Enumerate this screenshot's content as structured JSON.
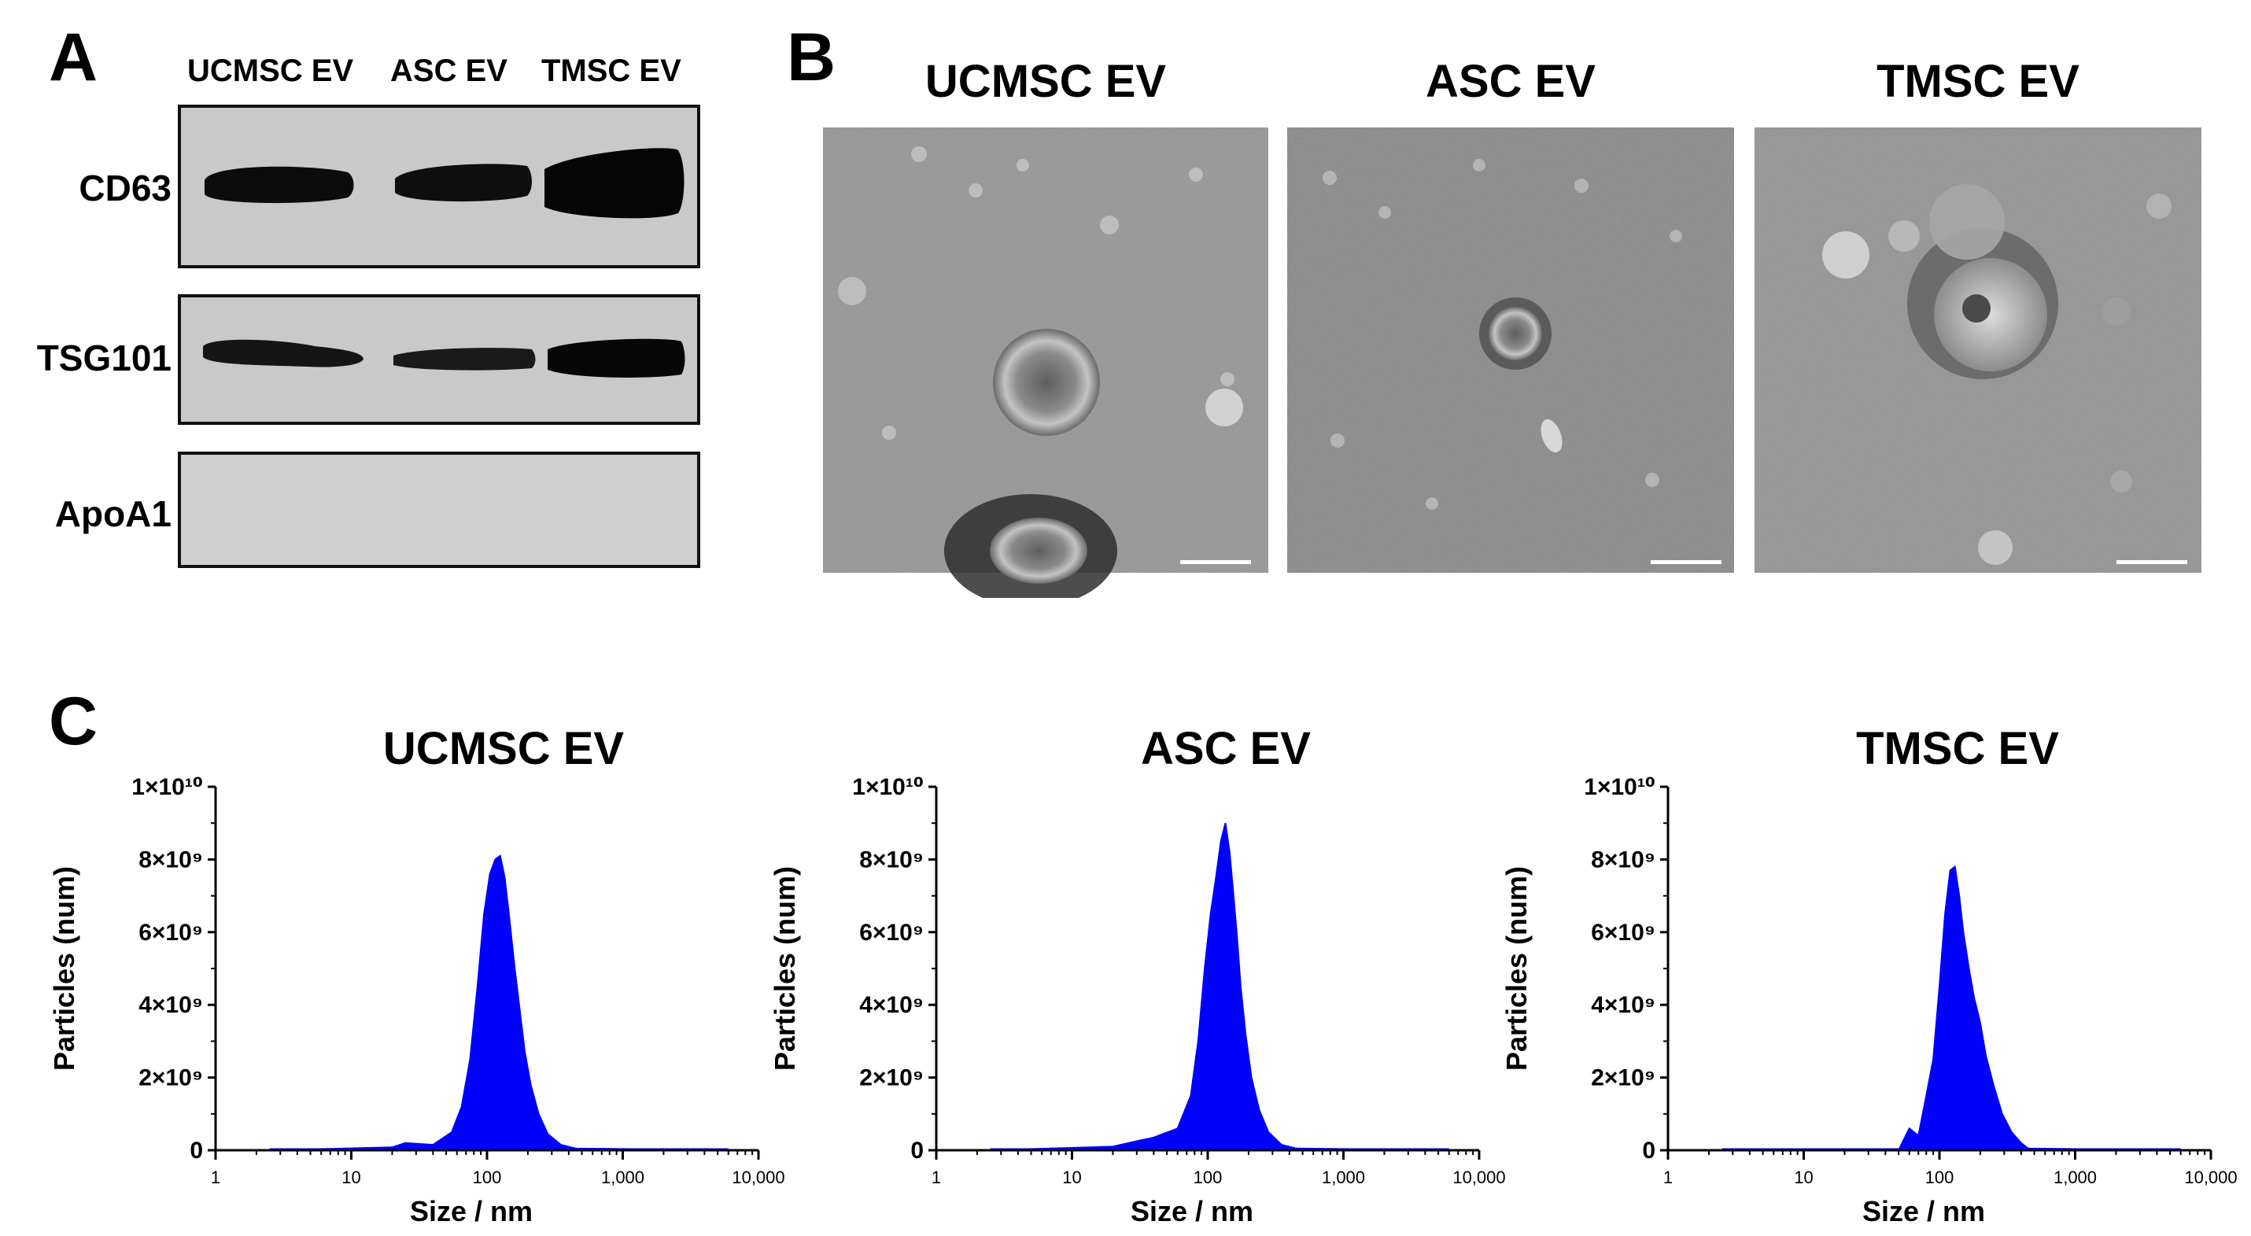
{
  "panelA": {
    "letter": "A",
    "lanes": [
      "UCMSC EV",
      "ASC EV",
      "TMSC EV"
    ],
    "rows": [
      "CD63",
      "TSG101",
      "ApoA1"
    ]
  },
  "panelB": {
    "letter": "B",
    "titles": [
      "UCMSC EV",
      "ASC EV",
      "TMSC EV"
    ]
  },
  "panelC": {
    "letter": "C",
    "titles": [
      "UCMSC EV",
      "ASC EV",
      "TMSC EV"
    ],
    "xlabel": "Size / nm",
    "ylabel": "Particles (num)"
  },
  "chart_data": [
    {
      "type": "area",
      "title": "UCMSC EV",
      "xlabel": "Size / nm",
      "ylabel": "Particles (num)",
      "xscale": "log",
      "xlim": [
        1,
        10000
      ],
      "ylim": [
        0,
        10000000000
      ],
      "xticks": [
        "1",
        "10",
        "100",
        "1,000",
        "10,000"
      ],
      "yticks": [
        "0",
        "2×10⁹",
        "4×10⁹",
        "6×10⁹",
        "8×10⁹",
        "1×10¹⁰"
      ],
      "color": "#0000ff",
      "x": [
        2.5,
        20,
        25,
        40,
        55,
        65,
        75,
        85,
        95,
        105,
        115,
        125,
        135,
        145,
        160,
        175,
        190,
        210,
        240,
        280,
        350,
        450,
        6000
      ],
      "y": [
        0,
        80000000,
        200000000,
        150000000,
        500000000,
        1200000000,
        2500000000,
        4500000000,
        6500000000,
        7600000000,
        8000000000,
        8100000000,
        7500000000,
        6500000000,
        5000000000,
        3800000000,
        2700000000,
        1800000000,
        1000000000,
        450000000,
        150000000,
        50000000,
        0
      ]
    },
    {
      "type": "area",
      "title": "ASC EV",
      "xlabel": "Size / nm",
      "ylabel": "Particles (num)",
      "xscale": "log",
      "xlim": [
        1,
        10000
      ],
      "ylim": [
        0,
        10000000000
      ],
      "xticks": [
        "1",
        "10",
        "100",
        "1,000",
        "10,000"
      ],
      "yticks": [
        "0",
        "2×10⁹",
        "4×10⁹",
        "6×10⁹",
        "8×10⁹",
        "1×10¹⁰"
      ],
      "color": "#0000ff",
      "x": [
        2.5,
        20,
        30,
        40,
        60,
        75,
        85,
        95,
        105,
        115,
        125,
        135,
        145,
        155,
        165,
        175,
        190,
        210,
        240,
        280,
        350,
        450,
        6000
      ],
      "y": [
        0,
        100000000,
        250000000,
        350000000,
        600000000,
        1500000000,
        3000000000,
        5000000000,
        6500000000,
        7500000000,
        8500000000,
        9000000000,
        8200000000,
        7000000000,
        5800000000,
        4500000000,
        3200000000,
        2000000000,
        1100000000,
        500000000,
        150000000,
        50000000,
        0
      ]
    },
    {
      "type": "area",
      "title": "TMSC EV",
      "xlabel": "Size / nm",
      "ylabel": "Particles (num)",
      "xscale": "log",
      "xlim": [
        1,
        10000
      ],
      "ylim": [
        0,
        10000000000
      ],
      "xticks": [
        "1",
        "10",
        "100",
        "1,000",
        "10,000"
      ],
      "yticks": [
        "0",
        "2×10⁹",
        "4×10⁹",
        "6×10⁹",
        "8×10⁹",
        "1×10¹⁰"
      ],
      "color": "#0000ff",
      "x": [
        2.5,
        50,
        60,
        70,
        80,
        90,
        100,
        110,
        120,
        130,
        140,
        150,
        165,
        180,
        200,
        220,
        250,
        290,
        340,
        400,
        450,
        6000
      ],
      "y": [
        0,
        0,
        600000000,
        400000000,
        1500000000,
        2500000000,
        4500000000,
        6500000000,
        7700000000,
        7800000000,
        7000000000,
        6000000000,
        5000000000,
        4200000000,
        3500000000,
        2600000000,
        1800000000,
        1000000000,
        500000000,
        200000000,
        50000000,
        0
      ]
    }
  ]
}
